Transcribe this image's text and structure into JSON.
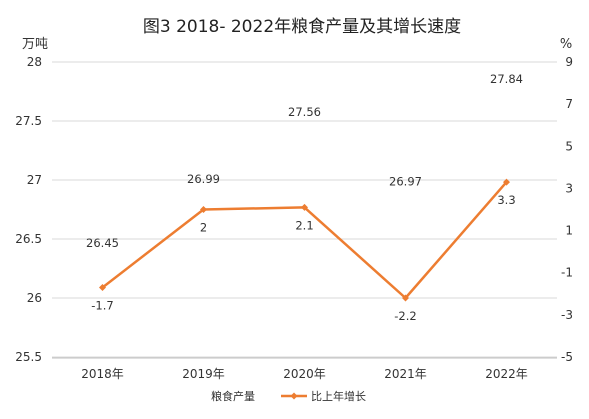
{
  "chart_data": {
    "type": "line",
    "title": "图3 2018- 2022年粮食产量及其增长速度",
    "left_axis": {
      "unit": "万吨",
      "ylim": [
        25.5,
        28
      ],
      "ticks": [
        "25.5",
        "26",
        "26.5",
        "27",
        "27.5",
        "28"
      ]
    },
    "right_axis": {
      "unit": "%",
      "ylim": [
        -5,
        9
      ],
      "ticks": [
        "-5",
        "-3",
        "-1",
        "1",
        "3",
        "5",
        "7",
        "9"
      ]
    },
    "categories": [
      "2018年",
      "2019年",
      "2020年",
      "2021年",
      "2022年"
    ],
    "series": [
      {
        "name": "粮食产量",
        "axis": "left",
        "color": "#4472C4",
        "values": [
          26.45,
          26.99,
          27.56,
          26.97,
          27.84
        ],
        "labels": [
          "26.45",
          "26.99",
          "27.56",
          "26.97",
          "27.84"
        ]
      },
      {
        "name": "比上年增长",
        "axis": "right",
        "color": "#ED7D31",
        "values": [
          -1.7,
          2,
          2.1,
          -2.2,
          3.3
        ],
        "labels": [
          "-1.7",
          "2",
          "2.1",
          "-2.2",
          "3.3"
        ]
      }
    ],
    "grid": true,
    "legend_position": "bottom"
  }
}
